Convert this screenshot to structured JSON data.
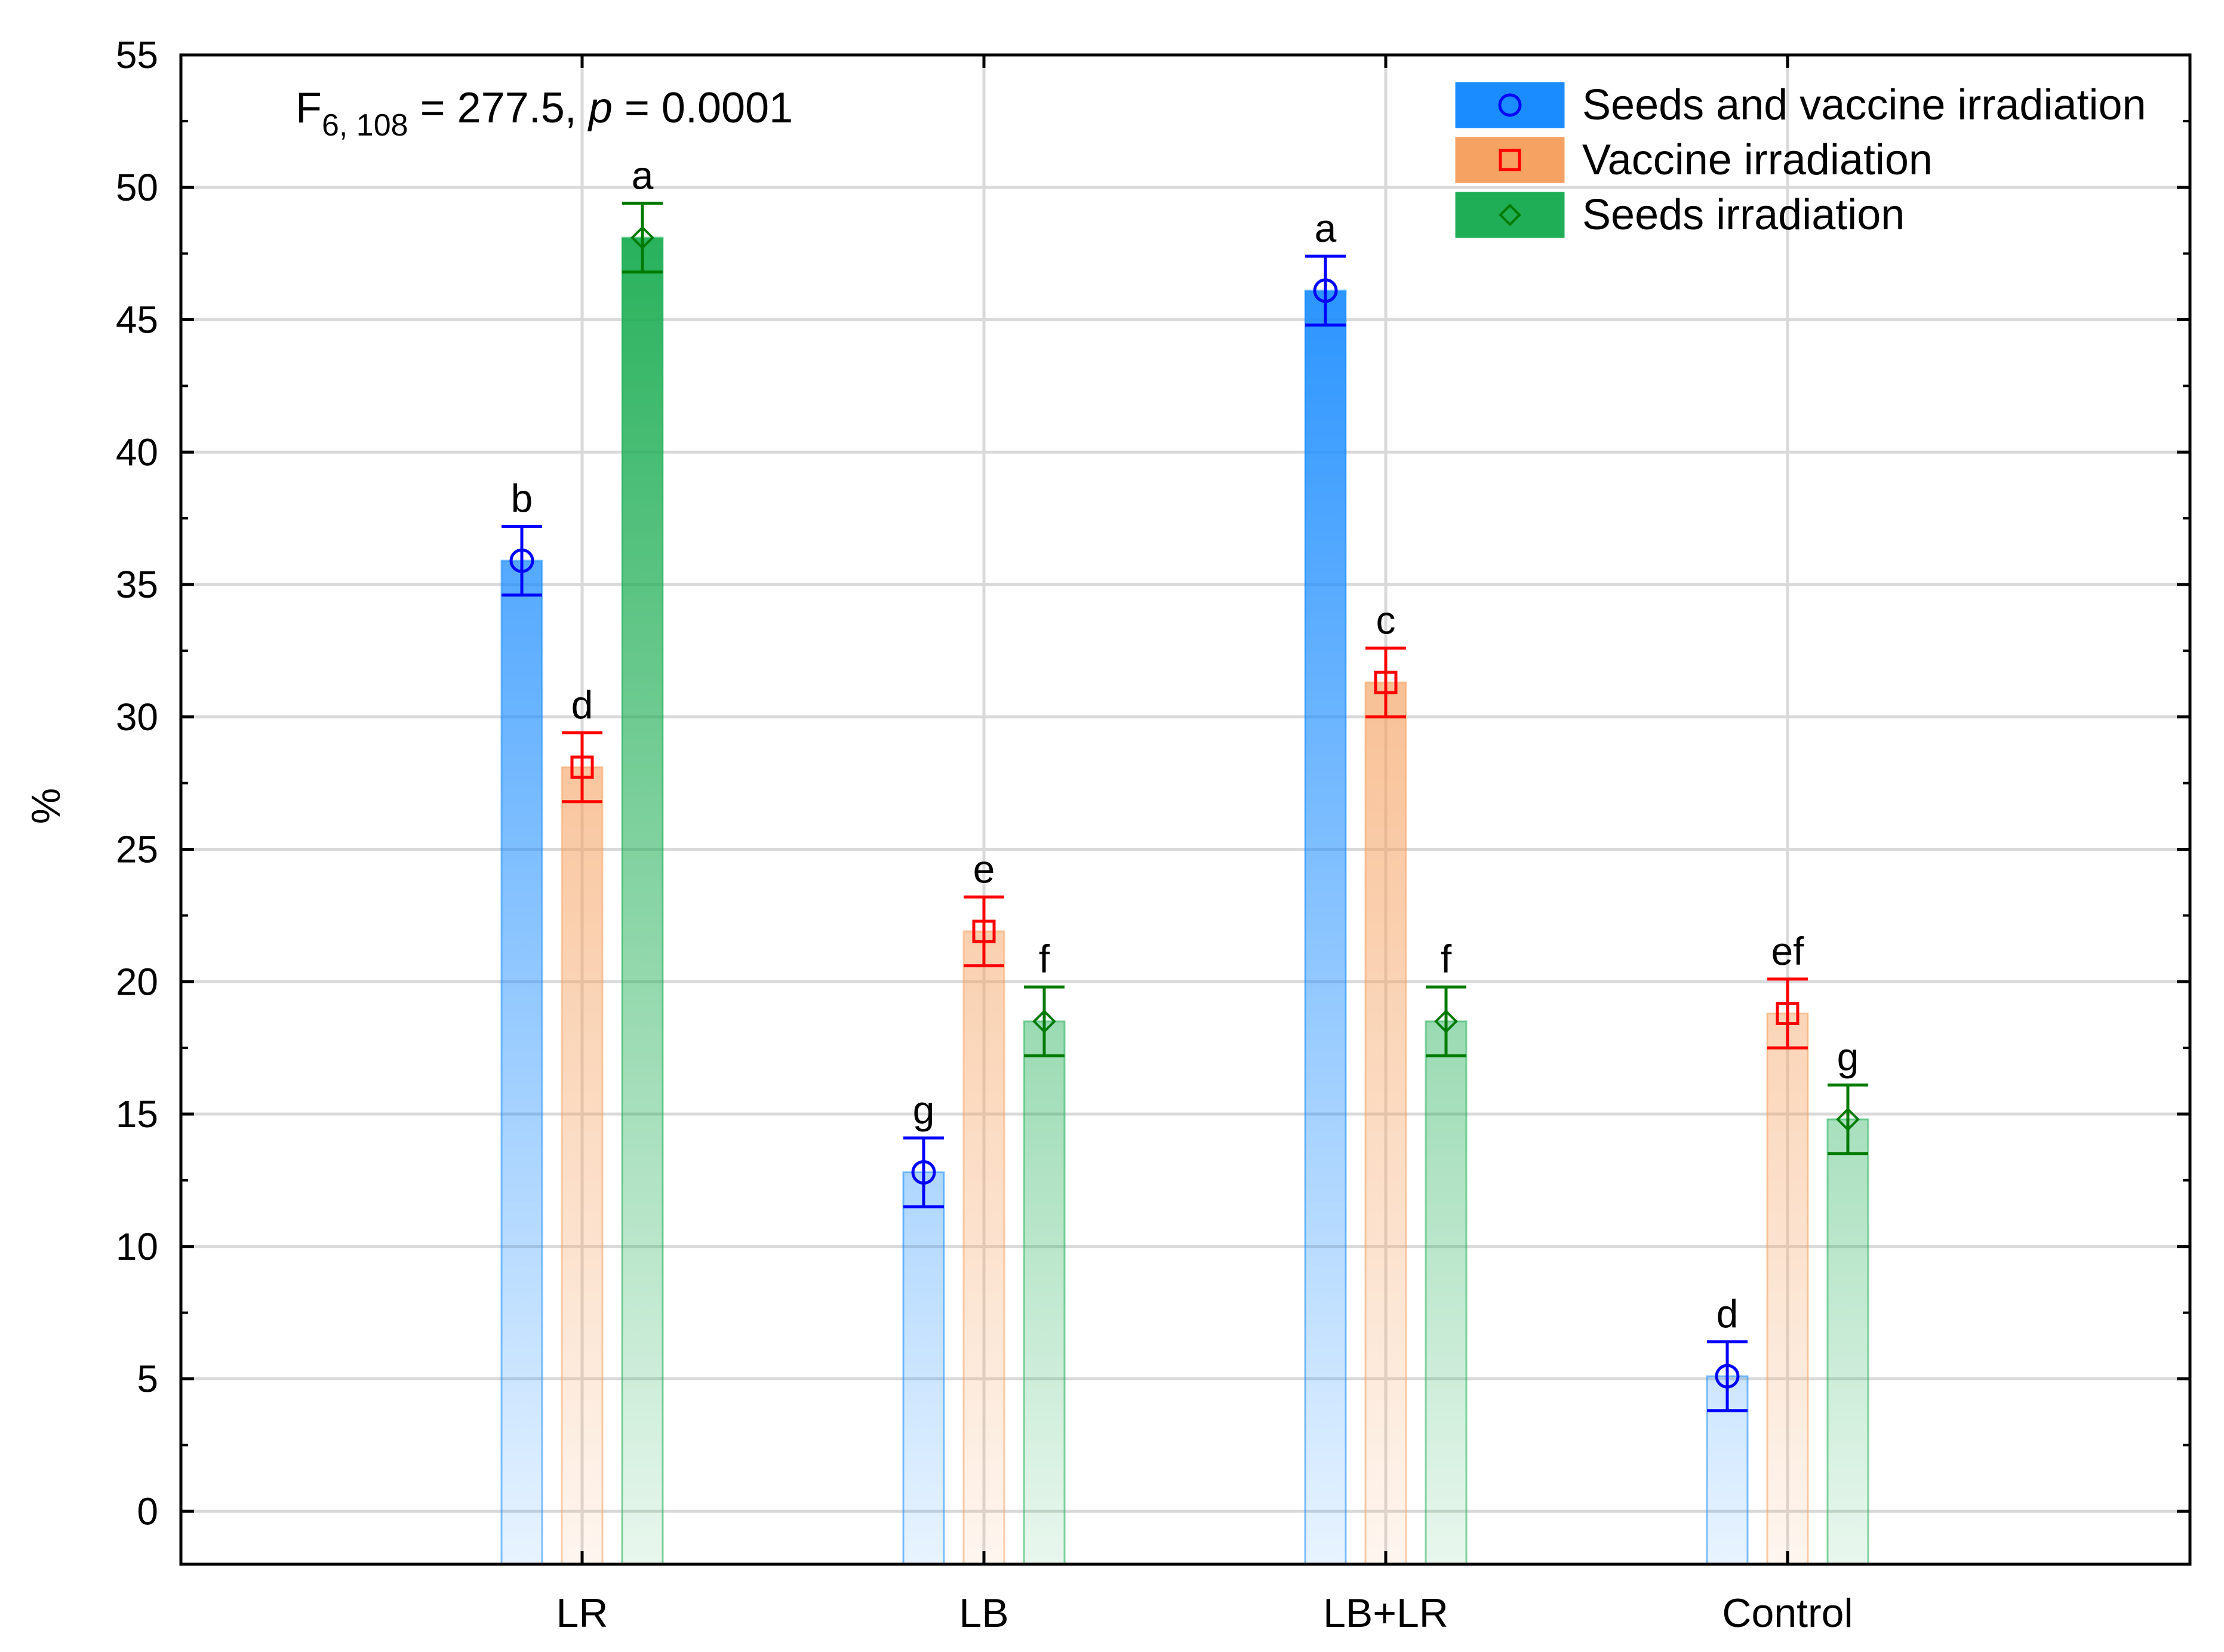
{
  "chart_data": {
    "type": "bar",
    "title": "",
    "xlabel": "",
    "ylabel": "%",
    "ylim": [
      -2,
      55
    ],
    "yticks": [
      0,
      5,
      10,
      15,
      20,
      25,
      30,
      35,
      40,
      45,
      50,
      55
    ],
    "grid": true,
    "legend_position": "top-right",
    "annotation": {
      "f_main": "F",
      "f_sub": "6, 108",
      "f_value": " = 277.5, ",
      "p_label": "p",
      "p_value": " = 0.0001"
    },
    "categories": [
      "LR",
      "LB",
      "LB+LR",
      "Control"
    ],
    "series": [
      {
        "name": "Seeds and vaccine irradiation",
        "marker": "circle",
        "color": "#1a8cff",
        "marker_color": "#0000ff",
        "values": [
          35.9,
          12.8,
          46.1,
          5.1
        ],
        "errors": [
          1.3,
          1.3,
          1.3,
          1.3
        ],
        "letters": [
          "b",
          "g",
          "a",
          "d"
        ]
      },
      {
        "name": "Vaccine irradiation",
        "marker": "square",
        "color": "#f5a262",
        "marker_color": "#ff0000",
        "values": [
          28.1,
          21.9,
          31.3,
          18.8
        ],
        "errors": [
          1.3,
          1.3,
          1.3,
          1.3
        ],
        "letters": [
          "d",
          "e",
          "c",
          "ef"
        ]
      },
      {
        "name": "Seeds irradiation",
        "marker": "diamond",
        "color": "#1fae55",
        "marker_color": "#007a00",
        "values": [
          48.1,
          18.5,
          18.5,
          14.8
        ],
        "errors": [
          1.3,
          1.3,
          1.3,
          1.3
        ],
        "letters": [
          "a",
          "f",
          "f",
          "g"
        ]
      }
    ]
  }
}
